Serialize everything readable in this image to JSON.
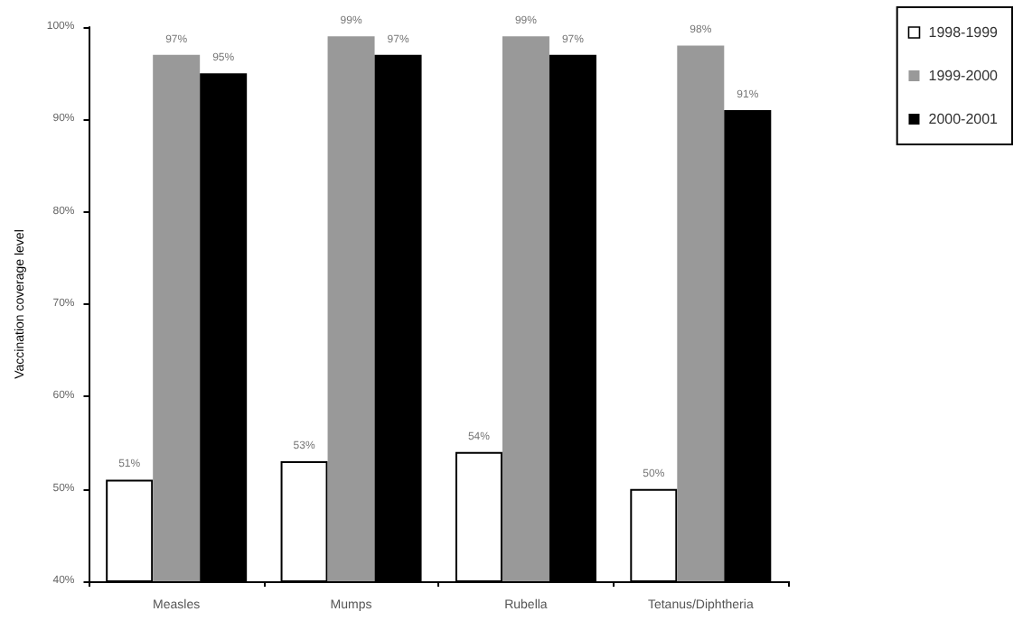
{
  "chart_data": {
    "type": "bar",
    "ylabel": "Vaccination coverage level",
    "categories": [
      "Measles",
      "Mumps",
      "Rubella",
      "Tetanus/Diphtheria"
    ],
    "series": [
      {
        "name": "1998-1999",
        "color": "#ffffff",
        "values": [
          51,
          53,
          54,
          50
        ],
        "value_labels": [
          "51%",
          "53%",
          "54%",
          "50%"
        ]
      },
      {
        "name": "1999-2000",
        "color": "#999999",
        "values": [
          97,
          99,
          99,
          98
        ],
        "value_labels": [
          "97%",
          "99%",
          "99%",
          "98%"
        ]
      },
      {
        "name": "2000-2001",
        "color": "#000000",
        "values": [
          95,
          97,
          97,
          91
        ],
        "value_labels": [
          "95%",
          "97%",
          "97%",
          "91%"
        ]
      }
    ],
    "ylim": [
      40,
      100
    ],
    "yticks": [
      {
        "value": 40,
        "label": "40%"
      },
      {
        "value": 50,
        "label": "50%"
      },
      {
        "value": 60,
        "label": "60%"
      },
      {
        "value": 70,
        "label": "70%"
      },
      {
        "value": 80,
        "label": "80%"
      },
      {
        "value": 90,
        "label": "90%"
      },
      {
        "value": 100,
        "label": "100%"
      }
    ],
    "grid": false,
    "legend": "top right"
  }
}
